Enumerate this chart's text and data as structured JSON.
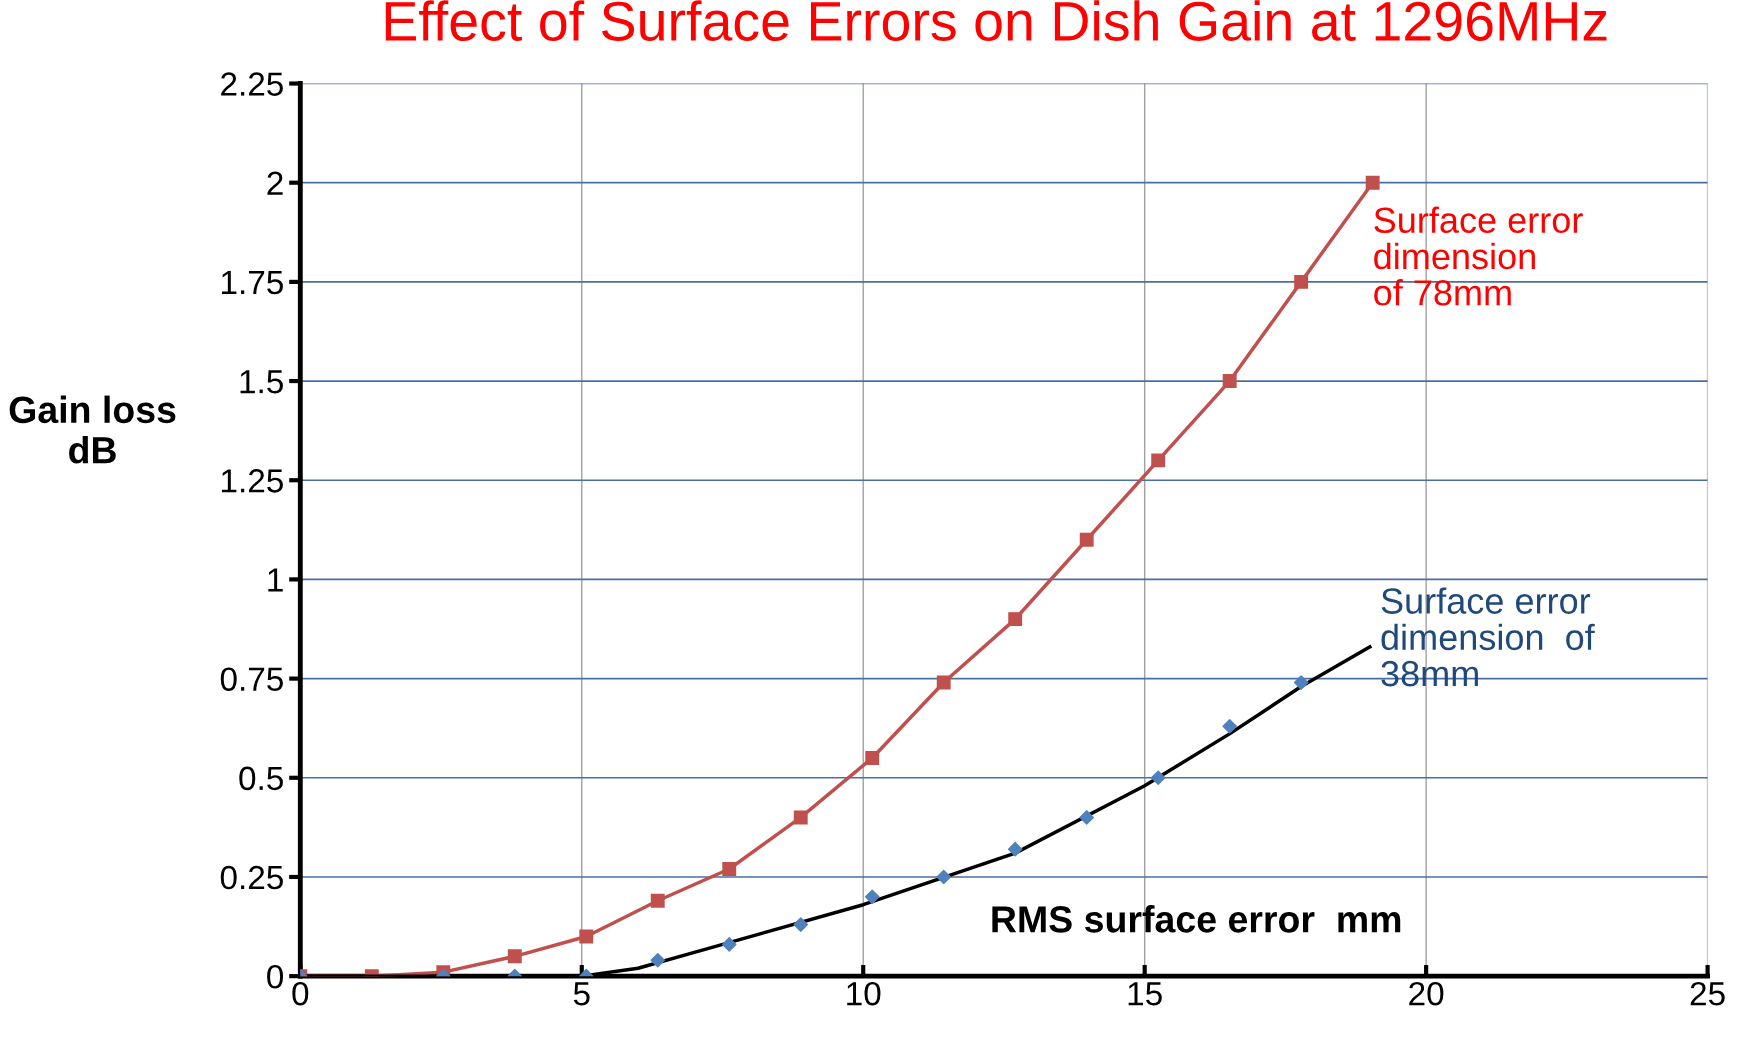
{
  "chart_data": {
    "type": "line",
    "title": "Effect of Surface Errors on Dish Gain at 1296MHz",
    "xlabel": "RMS surface error  mm",
    "ylabel": "Gain loss\ndB",
    "xlim": [
      0,
      25
    ],
    "xticks": [
      0,
      5,
      10,
      15,
      20,
      25
    ],
    "ylim": [
      0,
      2.25
    ],
    "yticks": [
      0,
      0.25,
      0.5,
      0.75,
      1,
      1.25,
      1.5,
      1.75,
      2,
      2.25
    ],
    "grid": true,
    "series": [
      {
        "name": "Surface error\ndimension\nof 78mm",
        "color": "#c0504d",
        "marker": "square",
        "x": [
          0,
          1.27,
          2.54,
          3.81,
          5.08,
          6.35,
          7.62,
          8.89,
          10.16,
          11.43,
          12.7,
          13.97,
          15.24,
          16.51,
          17.78,
          19.05
        ],
        "values": [
          0,
          0,
          0.01,
          0.05,
          0.1,
          0.19,
          0.27,
          0.4,
          0.55,
          0.74,
          0.9,
          1.1,
          1.3,
          1.5,
          1.75,
          2.0
        ]
      },
      {
        "name": "Surface error\ndimension  of\n38mm",
        "color": "#4f81bd",
        "type": "scatter",
        "marker": "diamond",
        "x": [
          0,
          2.54,
          3.81,
          5.08,
          6.35,
          7.62,
          8.89,
          10.16,
          11.43,
          12.7,
          13.97,
          15.24,
          16.51,
          17.78
        ],
        "values": [
          0,
          0,
          0,
          0,
          0.04,
          0.08,
          0.13,
          0.2,
          0.25,
          0.32,
          0.4,
          0.5,
          0.63,
          0.74
        ]
      },
      {
        "color": "#000000",
        "type": "line",
        "marker": "none",
        "x": [
          0,
          2,
          4,
          5,
          6,
          7,
          10,
          12.7,
          15,
          16.5,
          17.78,
          19
        ],
        "values": [
          0,
          0,
          0,
          0,
          0.02,
          0.06,
          0.18,
          0.31,
          0.48,
          0.61,
          0.73,
          0.83
        ]
      }
    ]
  }
}
